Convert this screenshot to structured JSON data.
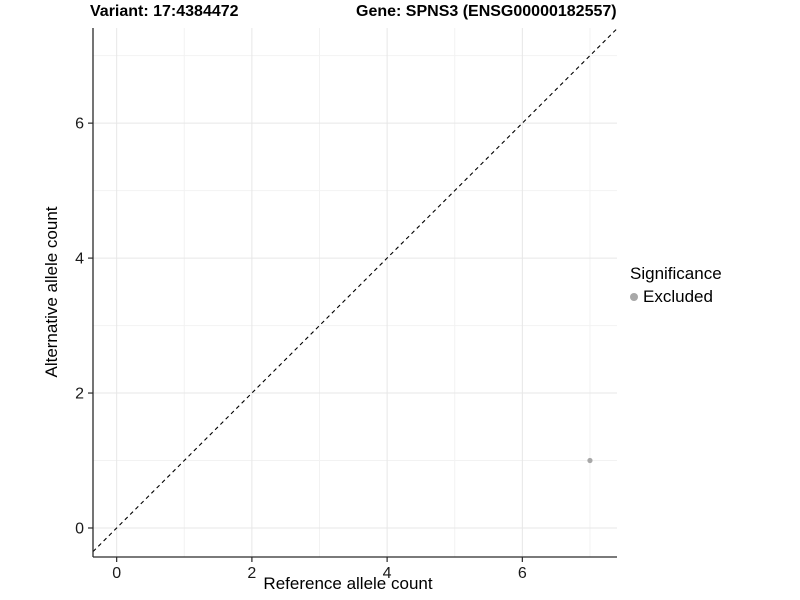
{
  "titles": {
    "variant": "Variant: 17:4384472",
    "gene": "Gene: SPNS3 (ENSG00000182557)"
  },
  "chart_data": {
    "type": "scatter",
    "title": "Variant: 17:4384472    Gene: SPNS3 (ENSG00000182557)",
    "xlabel": "Reference allele count",
    "ylabel": "Alternative allele count",
    "xlim": [
      -0.35,
      7.4
    ],
    "ylim": [
      -0.43,
      7.41
    ],
    "x_ticks": [
      0,
      2,
      4,
      6
    ],
    "y_ticks": [
      0,
      2,
      4,
      6
    ],
    "x_minor_ticks": [
      1,
      3,
      5,
      7
    ],
    "y_minor_ticks": [
      1,
      3,
      5,
      7
    ],
    "grid": true,
    "identity_line": {
      "style": "dashed",
      "slope": 1,
      "intercept": 0
    },
    "series": [
      {
        "name": "Excluded",
        "color": "#a8a8a8",
        "points": [
          {
            "x": 7,
            "y": 1
          }
        ]
      }
    ],
    "legend": {
      "title": "Significance",
      "position": "right",
      "entries": [
        {
          "label": "Excluded",
          "color": "#a8a8a8"
        }
      ]
    },
    "colors": {
      "grid_major": "#e7e7e7",
      "grid_minor": "#f2f2f2",
      "axis": "#2a2a2a",
      "identity_line": "#000000",
      "tick_label": "#1a1a1a"
    }
  }
}
